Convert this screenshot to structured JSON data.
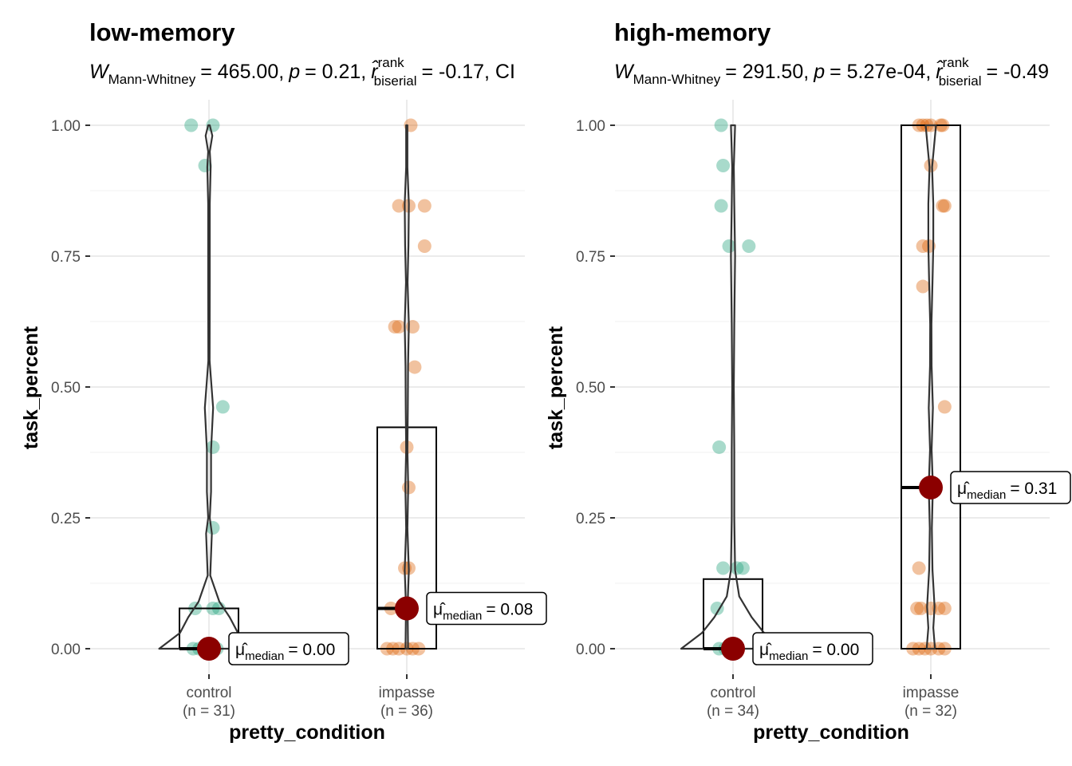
{
  "chart_data": [
    {
      "type": "violin-box-scatter",
      "title": "low-memory",
      "subtitle": {
        "statistic_symbol": "W",
        "statistic_subscript": "Mann-Whitney",
        "statistic_value": "= 465.00,",
        "p_symbol": "p",
        "p_value": "= 0.21,",
        "effect_symbol": "r̂",
        "effect_superscript": "rank",
        "effect_subscript": "biserial",
        "effect_value": "= -0.17, CI"
      },
      "xlabel": "pretty_condition",
      "ylabel": "task_percent",
      "ylim": [
        -0.05,
        1.03
      ],
      "yticks": [
        0.0,
        0.25,
        0.5,
        0.75,
        1.0
      ],
      "ytick_labels": [
        "0.00",
        "0.25",
        "0.50",
        "0.75",
        "1.00"
      ],
      "grid": true,
      "groups": [
        {
          "name": "control",
          "n_label": "(n = 31)",
          "color": "#1b9e77",
          "median": 0.0,
          "q1": 0.0,
          "q3": 0.077,
          "median_label_prefix": "μ̂",
          "median_label_sub": "median",
          "median_label_value": "= 0.00",
          "points": [
            {
              "dx": -0.09,
              "y": 1.0
            },
            {
              "dx": 0.02,
              "y": 1.0
            },
            {
              "dx": -0.02,
              "y": 0.923
            },
            {
              "dx": 0.07,
              "y": 0.462
            },
            {
              "dx": 0.02,
              "y": 0.385
            },
            {
              "dx": 0.02,
              "y": 0.231
            },
            {
              "dx": -0.07,
              "y": 0.077
            },
            {
              "dx": 0.02,
              "y": 0.077
            },
            {
              "dx": 0.05,
              "y": 0.077
            },
            {
              "dx": -0.08,
              "y": 0.0
            },
            {
              "dx": -0.05,
              "y": 0.0
            },
            {
              "dx": -0.02,
              "y": 0.0
            },
            {
              "dx": 0.02,
              "y": 0.0
            },
            {
              "dx": 0.04,
              "y": 0.0
            }
          ],
          "violin": [
            [
              0.0,
              0.24
            ],
            [
              0.03,
              0.14
            ],
            [
              0.06,
              0.1
            ],
            [
              0.09,
              0.05
            ],
            [
              0.14,
              0.006
            ],
            [
              0.22,
              0.014
            ],
            [
              0.25,
              0.004
            ],
            [
              0.3,
              0.01
            ],
            [
              0.38,
              0.01
            ],
            [
              0.46,
              0.02
            ],
            [
              0.55,
              0.003
            ],
            [
              0.7,
              0.004
            ],
            [
              0.85,
              0.004
            ],
            [
              0.92,
              0.008
            ],
            [
              0.95,
              0.004
            ],
            [
              0.98,
              0.016
            ],
            [
              1.0,
              0.004
            ]
          ]
        },
        {
          "name": "impasse",
          "n_label": "(n = 36)",
          "color": "#d95f02",
          "median": 0.077,
          "q1": 0.0,
          "q3": 0.423,
          "median_label_prefix": "μ̂",
          "median_label_sub": "median",
          "median_label_value": "= 0.08",
          "points": [
            {
              "dx": 0.02,
              "y": 1.0
            },
            {
              "dx": -0.04,
              "y": 0.846
            },
            {
              "dx": 0.01,
              "y": 0.846
            },
            {
              "dx": 0.09,
              "y": 0.846
            },
            {
              "dx": 0.09,
              "y": 0.769
            },
            {
              "dx": -0.06,
              "y": 0.615
            },
            {
              "dx": -0.04,
              "y": 0.615
            },
            {
              "dx": 0.03,
              "y": 0.615
            },
            {
              "dx": 0.04,
              "y": 0.538
            },
            {
              "dx": 0.0,
              "y": 0.385
            },
            {
              "dx": 0.01,
              "y": 0.308
            },
            {
              "dx": -0.01,
              "y": 0.154
            },
            {
              "dx": 0.01,
              "y": 0.154
            },
            {
              "dx": -0.08,
              "y": 0.077
            },
            {
              "dx": -0.1,
              "y": 0.0
            },
            {
              "dx": -0.07,
              "y": 0.0
            },
            {
              "dx": -0.04,
              "y": 0.0
            },
            {
              "dx": 0.0,
              "y": 0.0
            },
            {
              "dx": 0.03,
              "y": 0.0
            },
            {
              "dx": 0.06,
              "y": 0.0
            }
          ],
          "violin": [
            [
              0.0,
              0.006
            ],
            [
              0.08,
              0.004
            ],
            [
              0.15,
              0.01
            ],
            [
              0.23,
              0.003
            ],
            [
              0.31,
              0.007
            ],
            [
              0.38,
              0.003
            ],
            [
              0.46,
              0.005
            ],
            [
              0.54,
              0.006
            ],
            [
              0.62,
              0.01
            ],
            [
              0.7,
              0.004
            ],
            [
              0.77,
              0.008
            ],
            [
              0.85,
              0.01
            ],
            [
              0.92,
              0.003
            ],
            [
              1.0,
              0.003
            ]
          ]
        }
      ]
    },
    {
      "type": "violin-box-scatter",
      "title": "high-memory",
      "subtitle": {
        "statistic_symbol": "W",
        "statistic_subscript": "Mann-Whitney",
        "statistic_value": "= 291.50,",
        "p_symbol": "p",
        "p_value": "= 5.27e-04,",
        "effect_symbol": "r̂",
        "effect_superscript": "rank",
        "effect_subscript": "biserial",
        "effect_value": "= -0.49"
      },
      "xlabel": "pretty_condition",
      "ylabel": "task_percent",
      "ylim": [
        -0.05,
        1.03
      ],
      "yticks": [
        0.0,
        0.25,
        0.5,
        0.75,
        1.0
      ],
      "ytick_labels": [
        "0.00",
        "0.25",
        "0.50",
        "0.75",
        "1.00"
      ],
      "grid": true,
      "groups": [
        {
          "name": "control",
          "n_label": "(n = 34)",
          "color": "#1b9e77",
          "median": 0.0,
          "q1": 0.0,
          "q3": 0.133,
          "median_label_prefix": "μ̂",
          "median_label_sub": "median",
          "median_label_value": "= 0.00",
          "points": [
            {
              "dx": -0.06,
              "y": 1.0
            },
            {
              "dx": -0.05,
              "y": 0.923
            },
            {
              "dx": -0.06,
              "y": 0.846
            },
            {
              "dx": -0.02,
              "y": 0.769
            },
            {
              "dx": 0.08,
              "y": 0.769
            },
            {
              "dx": -0.07,
              "y": 0.385
            },
            {
              "dx": -0.05,
              "y": 0.154
            },
            {
              "dx": 0.02,
              "y": 0.154
            },
            {
              "dx": 0.05,
              "y": 0.154
            },
            {
              "dx": -0.08,
              "y": 0.077
            },
            {
              "dx": -0.07,
              "y": 0.0
            },
            {
              "dx": -0.04,
              "y": 0.0
            },
            {
              "dx": 0.02,
              "y": 0.0
            }
          ],
          "violin": [
            [
              0.0,
              0.25
            ],
            [
              0.03,
              0.15
            ],
            [
              0.06,
              0.09
            ],
            [
              0.1,
              0.03
            ],
            [
              0.15,
              0.01
            ],
            [
              0.25,
              0.006
            ],
            [
              0.38,
              0.006
            ],
            [
              0.5,
              0.004
            ],
            [
              0.62,
              0.006
            ],
            [
              0.75,
              0.01
            ],
            [
              0.85,
              0.006
            ],
            [
              0.92,
              0.004
            ],
            [
              1.0,
              0.01
            ]
          ]
        },
        {
          "name": "impasse",
          "n_label": "(n = 32)",
          "color": "#d95f02",
          "median": 0.308,
          "q1": 0.0,
          "q3": 1.0,
          "median_label_prefix": "μ̂",
          "median_label_sub": "median",
          "median_label_value": "= 0.31",
          "points": [
            {
              "dx": -0.06,
              "y": 1.0
            },
            {
              "dx": -0.04,
              "y": 1.0
            },
            {
              "dx": -0.02,
              "y": 1.0
            },
            {
              "dx": 0.0,
              "y": 1.0
            },
            {
              "dx": 0.05,
              "y": 1.0
            },
            {
              "dx": 0.06,
              "y": 1.0
            },
            {
              "dx": 0.0,
              "y": 0.923
            },
            {
              "dx": 0.06,
              "y": 0.846
            },
            {
              "dx": 0.07,
              "y": 0.846
            },
            {
              "dx": -0.04,
              "y": 0.769
            },
            {
              "dx": -0.01,
              "y": 0.769
            },
            {
              "dx": -0.04,
              "y": 0.692
            },
            {
              "dx": 0.07,
              "y": 0.462
            },
            {
              "dx": -0.02,
              "y": 0.308
            },
            {
              "dx": -0.06,
              "y": 0.154
            },
            {
              "dx": -0.07,
              "y": 0.077
            },
            {
              "dx": -0.05,
              "y": 0.077
            },
            {
              "dx": 0.0,
              "y": 0.077
            },
            {
              "dx": 0.04,
              "y": 0.077
            },
            {
              "dx": 0.07,
              "y": 0.077
            },
            {
              "dx": -0.09,
              "y": 0.0
            },
            {
              "dx": -0.06,
              "y": 0.0
            },
            {
              "dx": -0.03,
              "y": 0.0
            },
            {
              "dx": 0.0,
              "y": 0.0
            },
            {
              "dx": 0.04,
              "y": 0.0
            },
            {
              "dx": 0.07,
              "y": 0.0
            }
          ],
          "violin": [
            [
              0.0,
              0.02
            ],
            [
              0.04,
              0.012
            ],
            [
              0.08,
              0.018
            ],
            [
              0.15,
              0.008
            ],
            [
              0.23,
              0.005
            ],
            [
              0.31,
              0.01
            ],
            [
              0.38,
              0.004
            ],
            [
              0.46,
              0.01
            ],
            [
              0.54,
              0.004
            ],
            [
              0.62,
              0.003
            ],
            [
              0.7,
              0.008
            ],
            [
              0.77,
              0.012
            ],
            [
              0.85,
              0.012
            ],
            [
              0.92,
              0.006
            ],
            [
              1.0,
              0.025
            ]
          ]
        }
      ]
    }
  ]
}
